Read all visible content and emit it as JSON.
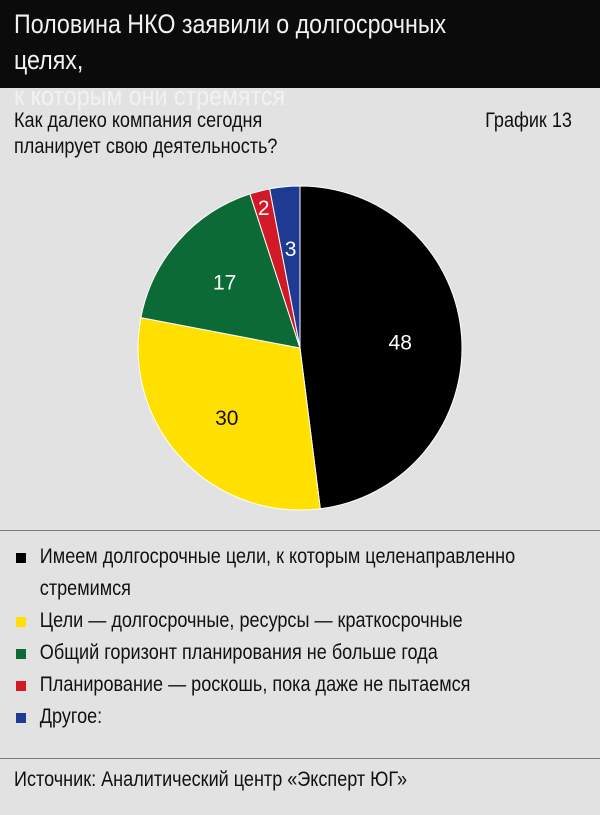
{
  "header": {
    "title": "Половина НКО заявили о долгосрочных целях,\nк которым они стремятся"
  },
  "question": "Как далеко компания сегодня\nпланирует свою деятельность?",
  "chart_number": "График 13",
  "source": "Источник: Аналитический центр «Эксперт ЮГ»",
  "chart_data": {
    "type": "pie",
    "title": "Как далеко компания сегодня планирует свою деятельность?",
    "unit": "%",
    "slices": [
      {
        "label": "Имеем долгосрочные цели, к которым целенаправленно стремимся",
        "value": 48,
        "color": "#000000",
        "text_color": "#ffffff"
      },
      {
        "label": "Цели — долгосрочные, ресурсы — краткосрочные",
        "value": 30,
        "color": "#ffe000",
        "text_color": "#111111"
      },
      {
        "label": "Общий горизонт планирования не больше года",
        "value": 17,
        "color": "#0b6a35",
        "text_color": "#ffffff"
      },
      {
        "label": "Планирование — роскошь, пока даже не пытаемся",
        "value": 2,
        "color": "#d11a25",
        "text_color": "#ffffff"
      },
      {
        "label": "Другое:",
        "value": 3,
        "color": "#1f3a93",
        "text_color": "#ffffff"
      }
    ]
  }
}
